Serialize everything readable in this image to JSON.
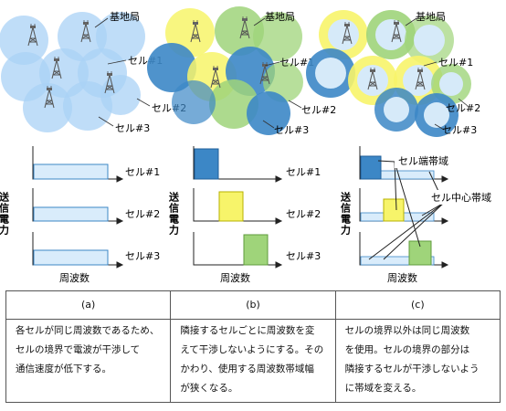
{
  "labels": {
    "base_station": "基地局",
    "cell1": "セル#1",
    "cell2": "セル#2",
    "cell3": "セル#3",
    "tx_power": "送信電力",
    "frequency": "周波数",
    "edge_band": "セル端帯域",
    "center_band": "セル中心帯域"
  },
  "colors": {
    "light_blue": "#a9d1f5",
    "dark_blue": "#3c87c6",
    "green": "#9fd47a",
    "yellow": "#f7f46a",
    "axis": "#222222"
  },
  "caption": {
    "headers": [
      "(a)",
      "(b)",
      "(c)"
    ],
    "descriptions": [
      [
        "各セルが同じ周波数であるため、",
        "セルの境界で電波が干渉して",
        "通信速度が低下する。"
      ],
      [
        "隣接するセルごとに周波数を変",
        "えて干渉しないようにする。その",
        "かわり、使用する周波数帯域幅",
        "が狭くなる。"
      ],
      [
        "セルの境界以外は同じ周波数",
        "を使用。セルの境界の部分は",
        "隣接するセルが干渉しないよう",
        "に帯域を変える。"
      ]
    ]
  }
}
